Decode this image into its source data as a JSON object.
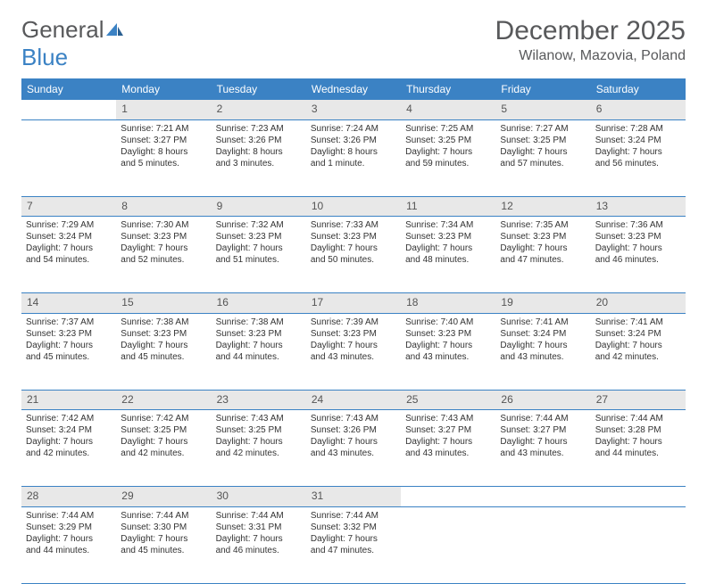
{
  "logo": {
    "text1": "General",
    "text2": "Blue"
  },
  "title": "December 2025",
  "location": "Wilanow, Mazovia, Poland",
  "weekday_header_bg": "#3b82c4",
  "weekdays": [
    "Sunday",
    "Monday",
    "Tuesday",
    "Wednesday",
    "Thursday",
    "Friday",
    "Saturday"
  ],
  "weeks": [
    {
      "nums": [
        "",
        "1",
        "2",
        "3",
        "4",
        "5",
        "6"
      ],
      "cells": [
        [],
        [
          "Sunrise: 7:21 AM",
          "Sunset: 3:27 PM",
          "Daylight: 8 hours",
          "and 5 minutes."
        ],
        [
          "Sunrise: 7:23 AM",
          "Sunset: 3:26 PM",
          "Daylight: 8 hours",
          "and 3 minutes."
        ],
        [
          "Sunrise: 7:24 AM",
          "Sunset: 3:26 PM",
          "Daylight: 8 hours",
          "and 1 minute."
        ],
        [
          "Sunrise: 7:25 AM",
          "Sunset: 3:25 PM",
          "Daylight: 7 hours",
          "and 59 minutes."
        ],
        [
          "Sunrise: 7:27 AM",
          "Sunset: 3:25 PM",
          "Daylight: 7 hours",
          "and 57 minutes."
        ],
        [
          "Sunrise: 7:28 AM",
          "Sunset: 3:24 PM",
          "Daylight: 7 hours",
          "and 56 minutes."
        ]
      ]
    },
    {
      "nums": [
        "7",
        "8",
        "9",
        "10",
        "11",
        "12",
        "13"
      ],
      "cells": [
        [
          "Sunrise: 7:29 AM",
          "Sunset: 3:24 PM",
          "Daylight: 7 hours",
          "and 54 minutes."
        ],
        [
          "Sunrise: 7:30 AM",
          "Sunset: 3:23 PM",
          "Daylight: 7 hours",
          "and 52 minutes."
        ],
        [
          "Sunrise: 7:32 AM",
          "Sunset: 3:23 PM",
          "Daylight: 7 hours",
          "and 51 minutes."
        ],
        [
          "Sunrise: 7:33 AM",
          "Sunset: 3:23 PM",
          "Daylight: 7 hours",
          "and 50 minutes."
        ],
        [
          "Sunrise: 7:34 AM",
          "Sunset: 3:23 PM",
          "Daylight: 7 hours",
          "and 48 minutes."
        ],
        [
          "Sunrise: 7:35 AM",
          "Sunset: 3:23 PM",
          "Daylight: 7 hours",
          "and 47 minutes."
        ],
        [
          "Sunrise: 7:36 AM",
          "Sunset: 3:23 PM",
          "Daylight: 7 hours",
          "and 46 minutes."
        ]
      ]
    },
    {
      "nums": [
        "14",
        "15",
        "16",
        "17",
        "18",
        "19",
        "20"
      ],
      "cells": [
        [
          "Sunrise: 7:37 AM",
          "Sunset: 3:23 PM",
          "Daylight: 7 hours",
          "and 45 minutes."
        ],
        [
          "Sunrise: 7:38 AM",
          "Sunset: 3:23 PM",
          "Daylight: 7 hours",
          "and 45 minutes."
        ],
        [
          "Sunrise: 7:38 AM",
          "Sunset: 3:23 PM",
          "Daylight: 7 hours",
          "and 44 minutes."
        ],
        [
          "Sunrise: 7:39 AM",
          "Sunset: 3:23 PM",
          "Daylight: 7 hours",
          "and 43 minutes."
        ],
        [
          "Sunrise: 7:40 AM",
          "Sunset: 3:23 PM",
          "Daylight: 7 hours",
          "and 43 minutes."
        ],
        [
          "Sunrise: 7:41 AM",
          "Sunset: 3:24 PM",
          "Daylight: 7 hours",
          "and 43 minutes."
        ],
        [
          "Sunrise: 7:41 AM",
          "Sunset: 3:24 PM",
          "Daylight: 7 hours",
          "and 42 minutes."
        ]
      ]
    },
    {
      "nums": [
        "21",
        "22",
        "23",
        "24",
        "25",
        "26",
        "27"
      ],
      "cells": [
        [
          "Sunrise: 7:42 AM",
          "Sunset: 3:24 PM",
          "Daylight: 7 hours",
          "and 42 minutes."
        ],
        [
          "Sunrise: 7:42 AM",
          "Sunset: 3:25 PM",
          "Daylight: 7 hours",
          "and 42 minutes."
        ],
        [
          "Sunrise: 7:43 AM",
          "Sunset: 3:25 PM",
          "Daylight: 7 hours",
          "and 42 minutes."
        ],
        [
          "Sunrise: 7:43 AM",
          "Sunset: 3:26 PM",
          "Daylight: 7 hours",
          "and 43 minutes."
        ],
        [
          "Sunrise: 7:43 AM",
          "Sunset: 3:27 PM",
          "Daylight: 7 hours",
          "and 43 minutes."
        ],
        [
          "Sunrise: 7:44 AM",
          "Sunset: 3:27 PM",
          "Daylight: 7 hours",
          "and 43 minutes."
        ],
        [
          "Sunrise: 7:44 AM",
          "Sunset: 3:28 PM",
          "Daylight: 7 hours",
          "and 44 minutes."
        ]
      ]
    },
    {
      "nums": [
        "28",
        "29",
        "30",
        "31",
        "",
        "",
        ""
      ],
      "cells": [
        [
          "Sunrise: 7:44 AM",
          "Sunset: 3:29 PM",
          "Daylight: 7 hours",
          "and 44 minutes."
        ],
        [
          "Sunrise: 7:44 AM",
          "Sunset: 3:30 PM",
          "Daylight: 7 hours",
          "and 45 minutes."
        ],
        [
          "Sunrise: 7:44 AM",
          "Sunset: 3:31 PM",
          "Daylight: 7 hours",
          "and 46 minutes."
        ],
        [
          "Sunrise: 7:44 AM",
          "Sunset: 3:32 PM",
          "Daylight: 7 hours",
          "and 47 minutes."
        ],
        [],
        [],
        []
      ]
    }
  ]
}
